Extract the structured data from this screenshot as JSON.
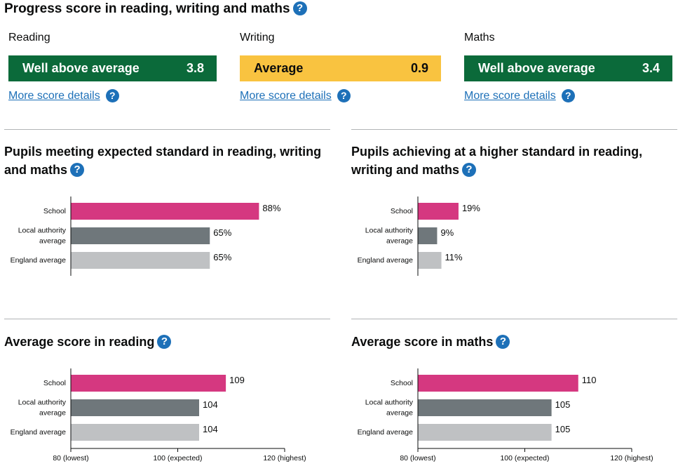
{
  "page": {
    "title": "Progress score in reading, writing and maths",
    "help_glyph": "?"
  },
  "progress": [
    {
      "subject": "Reading",
      "band": "Well above average",
      "score": "3.8",
      "color": "#0b6a3a",
      "link": "More score details"
    },
    {
      "subject": "Writing",
      "band": "Average",
      "score": "0.9",
      "color": "#f9c340",
      "link": "More score details"
    },
    {
      "subject": "Maths",
      "band": "Well above average",
      "score": "3.4",
      "color": "#0b6a3a",
      "link": "More score details"
    }
  ],
  "colors": {
    "school": "#d53880",
    "local_authority": "#6f777b",
    "england": "#bfc1c3",
    "link": "#1d70b8",
    "help_icon": "#1d70b8"
  },
  "chart_data": [
    {
      "type": "bar",
      "title": "Pupils meeting expected standard in reading, writing and maths",
      "categories": [
        [
          "School"
        ],
        [
          "Local authority",
          "average"
        ],
        [
          "England average"
        ]
      ],
      "values": [
        88,
        65,
        65
      ],
      "value_labels": [
        "88%",
        "65%",
        "65%"
      ],
      "xlim": [
        0,
        100
      ]
    },
    {
      "type": "bar",
      "title": "Pupils achieving at a higher standard in reading, writing and maths",
      "categories": [
        [
          "School"
        ],
        [
          "Local authority",
          "average"
        ],
        [
          "England average"
        ]
      ],
      "values": [
        19,
        9,
        11
      ],
      "value_labels": [
        "19%",
        "9%",
        "11%"
      ],
      "xlim": [
        0,
        100
      ]
    },
    {
      "type": "bar",
      "title": "Average score in reading",
      "categories": [
        [
          "School"
        ],
        [
          "Local authority",
          "average"
        ],
        [
          "England average"
        ]
      ],
      "values": [
        109,
        104,
        104
      ],
      "value_labels": [
        "109",
        "104",
        "104"
      ],
      "xlim": [
        80,
        120
      ],
      "ticks": [
        {
          "value": 80,
          "label": "80 (lowest)"
        },
        {
          "value": 100,
          "label": "100 (expected)"
        },
        {
          "value": 120,
          "label": "120 (highest)"
        }
      ]
    },
    {
      "type": "bar",
      "title": "Average score in maths",
      "categories": [
        [
          "School"
        ],
        [
          "Local authority",
          "average"
        ],
        [
          "England average"
        ]
      ],
      "values": [
        110,
        105,
        105
      ],
      "value_labels": [
        "110",
        "105",
        "105"
      ],
      "xlim": [
        80,
        120
      ],
      "ticks": [
        {
          "value": 80,
          "label": "80 (lowest)"
        },
        {
          "value": 100,
          "label": "100 (expected)"
        },
        {
          "value": 120,
          "label": "120 (highest)"
        }
      ]
    }
  ]
}
